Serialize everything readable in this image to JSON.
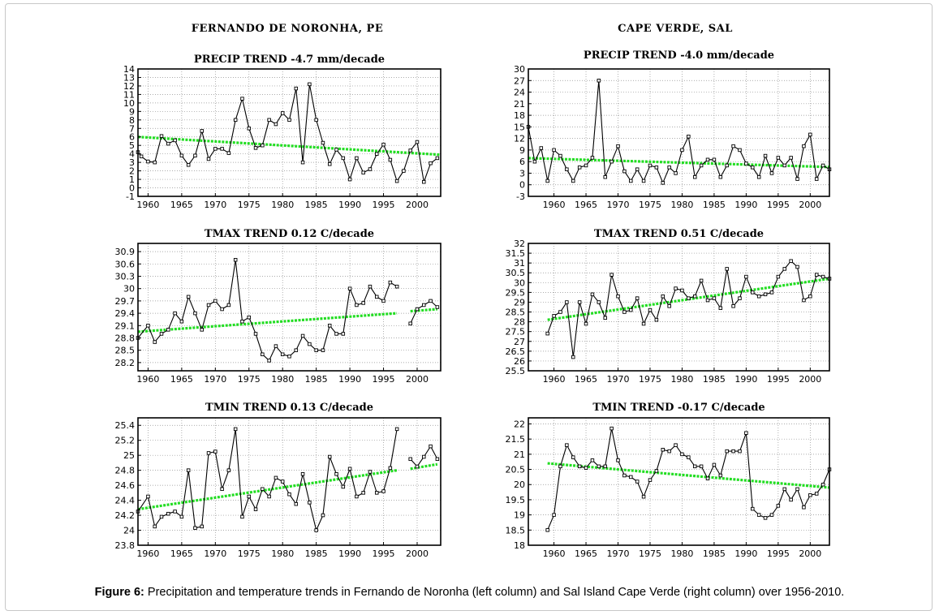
{
  "left_column_title": "FERNANDO DE NORONHA, PE",
  "right_column_title": "CAPE VERDE, SAL",
  "caption": {
    "label": "Figure 6:",
    "text": " Precipitation and temperature trends in Fernando de Noronha (left column) and Sal Island Cape Verde (right column) over 1956-2010."
  },
  "colors": {
    "series": "#000000",
    "trend": "#22dd22",
    "grid": "#909090"
  },
  "chart_data": [
    {
      "id": "fn-precip",
      "type": "line",
      "title": "PRECIP TREND -4.7 mm/decade",
      "xlim": [
        1958.5,
        2003.5
      ],
      "ylim": [
        -1,
        14
      ],
      "xticks": [
        1960,
        1965,
        1970,
        1975,
        1980,
        1985,
        1990,
        1995,
        2000
      ],
      "yticks": [
        -1,
        0,
        1,
        2,
        3,
        4,
        5,
        6,
        7,
        8,
        9,
        10,
        11,
        12,
        13,
        14
      ],
      "grid": true,
      "series": [
        {
          "x": [
            1958.5,
            1959,
            1960,
            1961,
            1962,
            1963,
            1964,
            1965,
            1966,
            1967,
            1968,
            1969,
            1970,
            1971,
            1972,
            1973,
            1974,
            1975,
            1976,
            1977,
            1978,
            1979,
            1980,
            1981,
            1982,
            1983,
            1984,
            1985,
            1986,
            1987,
            1988,
            1989,
            1990,
            1991,
            1992,
            1993,
            1994,
            1995,
            1996,
            1997,
            1998,
            1999,
            2000,
            2001,
            2002,
            2003
          ],
          "y": [
            4.2,
            3.7,
            3.1,
            3.0,
            6.1,
            5.2,
            5.6,
            3.8,
            2.7,
            3.8,
            6.7,
            3.4,
            4.6,
            4.6,
            4.1,
            8.0,
            10.5,
            7.0,
            4.7,
            5.0,
            8.0,
            7.5,
            8.8,
            8.0,
            11.7,
            3.0,
            12.2,
            8.0,
            5.3,
            2.8,
            4.5,
            3.5,
            1.0,
            3.5,
            1.8,
            2.2,
            4.0,
            5.1,
            3.3,
            0.8,
            2.0,
            4.4,
            5.4,
            0.7,
            2.9,
            3.5
          ]
        }
      ],
      "trend": {
        "x": [
          1958.5,
          2003.5
        ],
        "y": [
          6.0,
          3.9
        ]
      }
    },
    {
      "id": "cv-precip",
      "type": "line",
      "title": "PRECIP TREND -4.0 mm/decade",
      "xlim": [
        1956,
        2003
      ],
      "ylim": [
        -3,
        30
      ],
      "xticks": [
        1960,
        1965,
        1970,
        1975,
        1980,
        1985,
        1990,
        1995,
        2000
      ],
      "yticks": [
        -3,
        0,
        3,
        6,
        9,
        12,
        15,
        18,
        21,
        24,
        27,
        30
      ],
      "grid": true,
      "series": [
        {
          "x": [
            1956,
            1957,
            1958,
            1959,
            1960,
            1961,
            1962,
            1963,
            1964,
            1965,
            1966,
            1967,
            1968,
            1969,
            1970,
            1971,
            1972,
            1973,
            1974,
            1975,
            1976,
            1977,
            1978,
            1979,
            1980,
            1981,
            1982,
            1983,
            1984,
            1985,
            1986,
            1987,
            1988,
            1989,
            1990,
            1991,
            1992,
            1993,
            1994,
            1995,
            1996,
            1997,
            1998,
            1999,
            2000,
            2001,
            2002,
            2003
          ],
          "y": [
            15,
            6,
            9.5,
            1,
            9,
            7.5,
            4,
            1,
            4.5,
            5,
            7,
            27,
            2,
            6,
            10,
            3.5,
            1,
            4,
            1,
            5,
            4.5,
            0.5,
            4.5,
            3,
            9,
            12.5,
            2,
            5,
            6.5,
            6.5,
            2,
            5,
            10,
            9,
            5.5,
            4.5,
            2,
            7.5,
            3,
            7,
            5,
            7,
            1.5,
            10,
            13,
            1.5,
            5,
            4
          ]
        }
      ],
      "trend": {
        "x": [
          1956,
          2003
        ],
        "y": [
          6.9,
          4.6
        ]
      }
    },
    {
      "id": "fn-tmax",
      "type": "line",
      "title": "TMAX TREND 0.12 C/decade",
      "xlim": [
        1958.5,
        2003.5
      ],
      "ylim": [
        28.0,
        31.1
      ],
      "xticks": [
        1960,
        1965,
        1970,
        1975,
        1980,
        1985,
        1990,
        1995,
        2000
      ],
      "yticks": [
        28.2,
        28.5,
        28.8,
        29.1,
        29.4,
        29.7,
        30,
        30.3,
        30.6,
        30.9
      ],
      "grid": true,
      "series": [
        {
          "x": [
            1958.5,
            1960,
            1961,
            1962,
            1963,
            1964,
            1965,
            1966,
            1967,
            1968,
            1969,
            1970,
            1971,
            1972,
            1973,
            1974,
            1975,
            1976,
            1977,
            1978,
            1979,
            1980,
            1981,
            1982,
            1983,
            1984,
            1985,
            1986,
            1987,
            1988,
            1989,
            1990,
            1991,
            1992,
            1993,
            1994,
            1995,
            1996,
            1997
          ],
          "y": [
            28.8,
            29.1,
            28.7,
            28.9,
            29.0,
            29.4,
            29.2,
            29.8,
            29.4,
            29.0,
            29.6,
            29.7,
            29.5,
            29.6,
            30.7,
            29.2,
            29.3,
            28.9,
            28.4,
            28.25,
            28.6,
            28.4,
            28.35,
            28.5,
            28.85,
            28.65,
            28.5,
            28.5,
            29.1,
            28.9,
            28.9,
            30.0,
            29.6,
            29.65,
            30.05,
            29.8,
            29.7,
            30.15,
            30.05
          ]
        },
        {
          "x": [
            1999,
            2000,
            2001,
            2002,
            2003
          ],
          "y": [
            29.15,
            29.5,
            29.6,
            29.7,
            29.55
          ]
        }
      ],
      "trend": {
        "x": [
          1958.5,
          1997
        ],
        "y": [
          28.95,
          29.4
        ]
      },
      "trend2": {
        "x": [
          1999,
          2003
        ],
        "y": [
          29.45,
          29.5
        ]
      }
    },
    {
      "id": "cv-tmax",
      "type": "line",
      "title": "TMAX TREND 0.51 C/decade",
      "xlim": [
        1956,
        2003
      ],
      "ylim": [
        25.5,
        32
      ],
      "xticks": [
        1960,
        1965,
        1970,
        1975,
        1980,
        1985,
        1990,
        1995,
        2000
      ],
      "yticks": [
        25.5,
        26,
        26.5,
        27,
        27.5,
        28,
        28.5,
        29,
        29.5,
        30,
        30.5,
        31,
        31.5,
        32
      ],
      "grid": true,
      "series": [
        {
          "x": [
            1959,
            1960,
            1961,
            1962,
            1963,
            1964,
            1965,
            1966,
            1967,
            1968,
            1969,
            1970,
            1971,
            1972,
            1973,
            1974,
            1975,
            1976,
            1977,
            1978,
            1979,
            1980,
            1981,
            1982,
            1983,
            1984,
            1985,
            1986,
            1987,
            1988,
            1989,
            1990,
            1991,
            1992,
            1993,
            1994,
            1995,
            1996,
            1997,
            1998,
            1999,
            2000,
            2001,
            2002,
            2003
          ],
          "y": [
            27.4,
            28.3,
            28.5,
            29.0,
            26.2,
            29.0,
            27.9,
            29.4,
            29.0,
            28.2,
            30.4,
            29.3,
            28.5,
            28.6,
            29.2,
            27.9,
            28.6,
            28.1,
            29.3,
            28.8,
            29.7,
            29.6,
            29.2,
            29.3,
            30.1,
            29.1,
            29.2,
            28.7,
            30.7,
            28.8,
            29.2,
            30.3,
            29.5,
            29.3,
            29.4,
            29.5,
            30.3,
            30.7,
            31.1,
            30.8,
            29.1,
            29.3,
            30.4,
            30.3,
            30.2
          ]
        }
      ],
      "trend": {
        "x": [
          1959,
          2003
        ],
        "y": [
          28.1,
          30.2
        ]
      }
    },
    {
      "id": "fn-tmin",
      "type": "line",
      "title": "TMIN TREND 0.13 C/decade",
      "xlim": [
        1958.5,
        2003.5
      ],
      "ylim": [
        23.8,
        25.5
      ],
      "xticks": [
        1960,
        1965,
        1970,
        1975,
        1980,
        1985,
        1990,
        1995,
        2000
      ],
      "yticks": [
        23.8,
        24,
        24.2,
        24.4,
        24.6,
        24.8,
        25,
        25.2,
        25.4
      ],
      "grid": true,
      "series": [
        {
          "x": [
            1958.5,
            1960,
            1961,
            1962,
            1963,
            1964,
            1965,
            1966,
            1967,
            1968,
            1969,
            1970,
            1971,
            1972,
            1973,
            1974,
            1975,
            1976,
            1977,
            1978,
            1979,
            1980,
            1981,
            1982,
            1983,
            1984,
            1985,
            1986,
            1987,
            1988,
            1989,
            1990,
            1991,
            1992,
            1993,
            1994,
            1995,
            1996,
            1997
          ],
          "y": [
            24.25,
            24.45,
            24.05,
            24.18,
            24.22,
            24.25,
            24.18,
            24.8,
            24.03,
            24.05,
            25.03,
            25.05,
            24.55,
            24.8,
            25.35,
            24.18,
            24.45,
            24.28,
            24.55,
            24.45,
            24.7,
            24.65,
            24.48,
            24.35,
            24.75,
            24.37,
            24.0,
            24.2,
            24.98,
            24.75,
            24.58,
            24.82,
            24.45,
            24.5,
            24.78,
            24.5,
            24.52,
            24.83,
            25.35
          ]
        },
        {
          "x": [
            1999,
            2000,
            2001,
            2002,
            2003
          ],
          "y": [
            24.95,
            24.85,
            24.98,
            25.12,
            24.95
          ]
        }
      ],
      "trend": {
        "x": [
          1958.5,
          1997
        ],
        "y": [
          24.28,
          24.8
        ]
      },
      "trend2": {
        "x": [
          1999,
          2003
        ],
        "y": [
          24.82,
          24.88
        ]
      }
    },
    {
      "id": "cv-tmin",
      "type": "line",
      "title": "TMIN TREND -0.17 C/decade",
      "xlim": [
        1956,
        2003
      ],
      "ylim": [
        18,
        22.2
      ],
      "xticks": [
        1960,
        1965,
        1970,
        1975,
        1980,
        1985,
        1990,
        1995,
        2000
      ],
      "yticks": [
        18,
        18.5,
        19,
        19.5,
        20,
        20.5,
        21,
        21.5,
        22
      ],
      "grid": true,
      "series": [
        {
          "x": [
            1959,
            1960,
            1961,
            1962,
            1963,
            1964,
            1965,
            1966,
            1967,
            1968,
            1969,
            1970,
            1971,
            1972,
            1973,
            1974,
            1975,
            1976,
            1977,
            1978,
            1979,
            1980,
            1981,
            1982,
            1983,
            1984,
            1985,
            1986,
            1987,
            1988,
            1989,
            1990,
            1991,
            1992,
            1993,
            1994,
            1995,
            1996,
            1997,
            1998,
            1999,
            2000,
            2001,
            2002,
            2003
          ],
          "y": [
            18.5,
            19.0,
            20.6,
            21.3,
            20.9,
            20.6,
            20.55,
            20.8,
            20.6,
            20.6,
            21.85,
            20.8,
            20.3,
            20.25,
            20.1,
            19.6,
            20.15,
            20.45,
            21.15,
            21.1,
            21.3,
            21.0,
            20.9,
            20.6,
            20.6,
            20.2,
            20.65,
            20.3,
            21.1,
            21.1,
            21.1,
            21.7,
            19.2,
            19.0,
            18.9,
            19.0,
            19.3,
            19.85,
            19.5,
            19.85,
            19.25,
            19.65,
            19.7,
            20.0,
            20.5
          ]
        }
      ],
      "trend": {
        "x": [
          1959,
          2003
        ],
        "y": [
          20.7,
          19.9
        ]
      }
    }
  ]
}
